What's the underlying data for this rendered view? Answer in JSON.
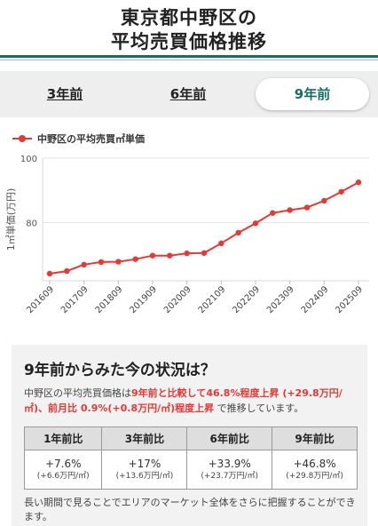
{
  "header": {
    "title_line1": "東京都中野区の",
    "title_line2": "平均売買価格推移"
  },
  "tabs": [
    {
      "label": "3年前",
      "active": false
    },
    {
      "label": "6年前",
      "active": false
    },
    {
      "label": "9年前",
      "active": true
    }
  ],
  "colors": {
    "accent": "#176f63",
    "series": "#e53935"
  },
  "chart_data": {
    "type": "line",
    "ylabel": "1㎡単価(万円)",
    "yticks": [
      80,
      100
    ],
    "ylim": [
      62,
      100
    ],
    "grid": "horizontal",
    "legend": "top-left",
    "x": [
      "201609",
      "201703",
      "201709",
      "201803",
      "201809",
      "201903",
      "201909",
      "202003",
      "202009",
      "202103",
      "202109",
      "202203",
      "202209",
      "202303",
      "202309",
      "202403",
      "202409",
      "202503",
      "202509"
    ],
    "xticks": [
      "201609",
      "201709",
      "201809",
      "201909",
      "202009",
      "202109",
      "202209",
      "202309",
      "202409",
      "202509"
    ],
    "series": [
      {
        "name": "中野区の平均売買㎡単価",
        "values": [
          64.2,
          65.0,
          67.0,
          67.8,
          67.9,
          68.7,
          69.8,
          69.8,
          70.5,
          70.6,
          73.6,
          76.9,
          79.8,
          83.0,
          83.9,
          84.7,
          86.8,
          89.6,
          92.5
        ]
      }
    ]
  },
  "summary": {
    "heading": "9年前からみた今の状況は？",
    "text_1": "中野区の平均売買価格は",
    "text_2": "9年前と比較して46.8%程度上昇 (+29.8万円/㎡)、前月比 0.9%(+0.8万円/㎡)程度上昇",
    "text_3": " で推移しています。"
  },
  "table": {
    "headers": [
      "1年前比",
      "3年前比",
      "6年前比",
      "9年前比"
    ],
    "cells": [
      {
        "pct": "+7.6%",
        "amount": "(+6.6万円/㎡)"
      },
      {
        "pct": "+17%",
        "amount": "(+13.6万円/㎡)"
      },
      {
        "pct": "+33.9%",
        "amount": "(+23.7万円/㎡)"
      },
      {
        "pct": "+46.8%",
        "amount": "(+29.8万円/㎡)"
      }
    ]
  },
  "note": "長い期間で見ることでエリアのマーケット全体をさらに把握することができます。"
}
